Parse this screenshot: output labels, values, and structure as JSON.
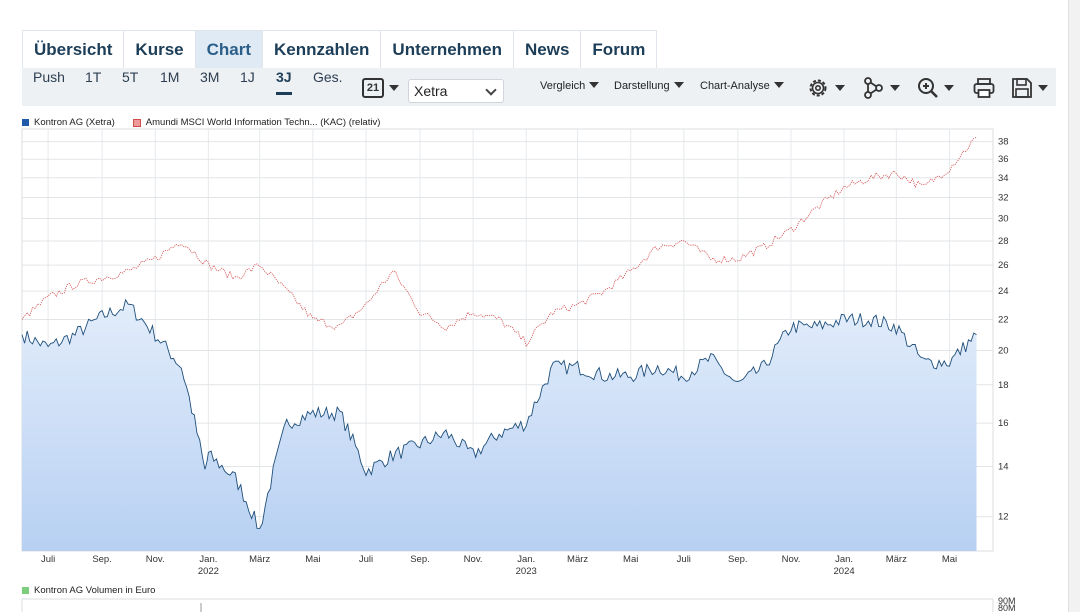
{
  "tabs": [
    {
      "label": "Übersicht"
    },
    {
      "label": "Kurse"
    },
    {
      "label": "Chart"
    },
    {
      "label": "Kennzahlen"
    },
    {
      "label": "Unternehmen"
    },
    {
      "label": "News"
    },
    {
      "label": "Forum"
    }
  ],
  "active_tab": "Chart",
  "toolbar": {
    "ranges": [
      "Push",
      "1T",
      "5T",
      "1M",
      "3M",
      "1J",
      "3J",
      "Ges."
    ],
    "active_range": "3J",
    "calendar_label": "21",
    "exchange_value": "Xetra",
    "menus": [
      "Vergleich",
      "Darstellung",
      "Chart-Analyse"
    ],
    "icons": [
      "settings-icon",
      "indicators-icon",
      "zoom-icon",
      "print-icon",
      "save-icon"
    ]
  },
  "colors": {
    "primary_fill": "#c9dcf7",
    "primary_line": "#1f4f7a",
    "compare_line": "#d24b4b",
    "volume": "#7ccd7c"
  },
  "chart_data": {
    "type": "area",
    "legend": [
      {
        "name": "Kontron AG (Xetra)",
        "color": "#1f5aa8"
      },
      {
        "name": "Amundi MSCI World Information Techn... (KAC) (relativ)",
        "color": "#d24b4b"
      }
    ],
    "x_ticks": [
      "Juli",
      "Sep.",
      "Nov.",
      "Jan.",
      "März",
      "Mai",
      "Juli",
      "Sep.",
      "Nov.",
      "Jan.",
      "März",
      "Mai",
      "Juli",
      "Sep.",
      "Nov.",
      "Jan.",
      "März",
      "Mai"
    ],
    "x_years": [
      {
        "label": "2022",
        "at": "Jan."
      },
      {
        "label": "2023",
        "at": "Jan."
      },
      {
        "label": "2024",
        "at": "Jan."
      }
    ],
    "y_ticks": [
      12,
      14,
      16,
      18,
      20,
      22,
      24,
      26,
      28,
      30,
      32,
      34,
      36,
      38
    ],
    "y_scale": "log",
    "ylim": [
      10.8,
      39.5
    ],
    "grid": true,
    "series": [
      {
        "name": "Kontron AG (Xetra)",
        "x": [
          "2021-06",
          "2021-07",
          "2021-08",
          "2021-09",
          "2021-10",
          "2021-11",
          "2021-12",
          "2021-12-28",
          "2022-01",
          "2022-02",
          "2022-03",
          "2022-04",
          "2022-05",
          "2022-06",
          "2022-07",
          "2022-08",
          "2022-09",
          "2022-10",
          "2022-11",
          "2022-12",
          "2023-01",
          "2023-02",
          "2023-03",
          "2023-04",
          "2023-05",
          "2023-06",
          "2023-07",
          "2023-08",
          "2023-09",
          "2023-10",
          "2023-11",
          "2023-12",
          "2024-01",
          "2024-02",
          "2024-03",
          "2024-04",
          "2024-05",
          "2024-06"
        ],
        "values": [
          21.0,
          20.2,
          21.0,
          22.2,
          23.0,
          21.0,
          19.0,
          13.8,
          14.5,
          13.5,
          11.5,
          16.0,
          16.5,
          16.5,
          13.8,
          14.5,
          15.0,
          15.5,
          14.5,
          15.5,
          16.0,
          19.0,
          19.0,
          18.5,
          18.5,
          19.0,
          18.5,
          19.5,
          18.0,
          19.0,
          21.5,
          21.5,
          22.0,
          22.0,
          21.5,
          19.3,
          19.3,
          21.0
        ]
      },
      {
        "name": "Amundi MSCI World Information Techn... (KAC) (relativ)",
        "x": [
          "2021-06",
          "2021-07",
          "2021-08",
          "2021-09",
          "2021-10",
          "2021-11",
          "2021-12",
          "2022-01",
          "2022-02",
          "2022-03",
          "2022-04",
          "2022-05",
          "2022-06",
          "2022-07",
          "2022-08",
          "2022-09",
          "2022-10",
          "2022-11",
          "2022-12",
          "2023-01",
          "2023-02",
          "2023-03",
          "2023-04",
          "2023-05",
          "2023-06",
          "2023-07",
          "2023-08",
          "2023-09",
          "2023-10",
          "2023-11",
          "2023-12",
          "2024-01",
          "2024-02",
          "2024-03",
          "2024-04",
          "2024-05",
          "2024-06"
        ],
        "values": [
          22.0,
          23.5,
          24.5,
          25.0,
          25.5,
          26.5,
          28.0,
          26.0,
          25.0,
          26.0,
          24.0,
          22.0,
          21.5,
          23.0,
          25.5,
          22.5,
          21.5,
          22.5,
          22.0,
          20.5,
          22.5,
          23.0,
          24.0,
          25.5,
          27.5,
          28.0,
          26.5,
          26.5,
          27.5,
          29.0,
          31.0,
          33.0,
          34.0,
          34.5,
          33.0,
          35.0,
          38.5
        ]
      }
    ]
  },
  "volume_chart": {
    "legend": "Kontron AG Volumen in Euro",
    "y_ticks": [
      "90M",
      "80M"
    ]
  }
}
